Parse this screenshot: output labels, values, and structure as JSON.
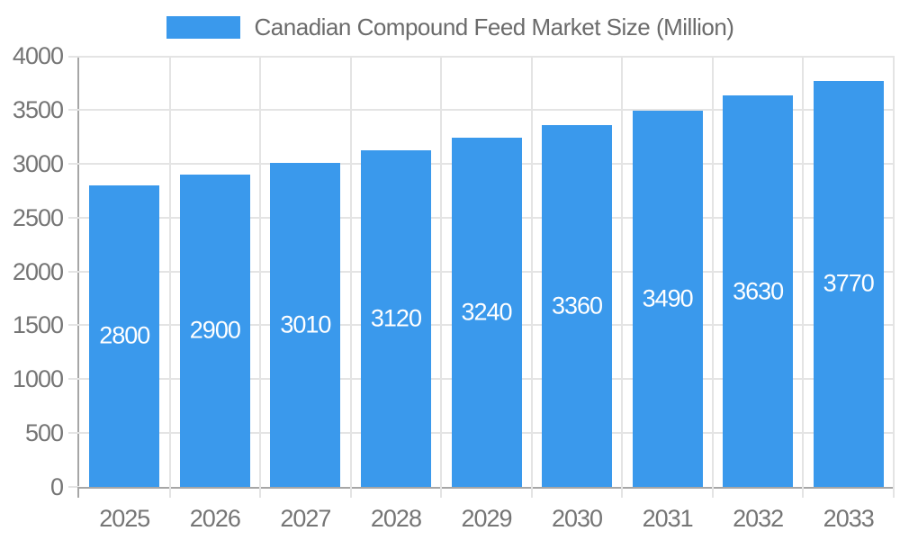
{
  "chart_data": {
    "type": "bar",
    "title": "Canadian Compound Feed Market Size (Million)",
    "categories": [
      "2025",
      "2026",
      "2027",
      "2028",
      "2029",
      "2030",
      "2031",
      "2032",
      "2033"
    ],
    "values": [
      2800,
      2900,
      3010,
      3120,
      3240,
      3360,
      3490,
      3630,
      3770
    ],
    "xlabel": "",
    "ylabel": "",
    "ylim": [
      0,
      4000
    ],
    "ytick_step": 500,
    "grid": "both",
    "legend_position": "top",
    "bar_value_labels": "inside-center"
  },
  "colors": {
    "bar": "#3A99EC",
    "bar_label": "#FFFFFF",
    "axis_line": "#A6A6A6",
    "gridline": "#E4E4E4",
    "tick_label": "#757575",
    "legend_text": "#6B6B6B",
    "background": "#FFFFFF"
  }
}
